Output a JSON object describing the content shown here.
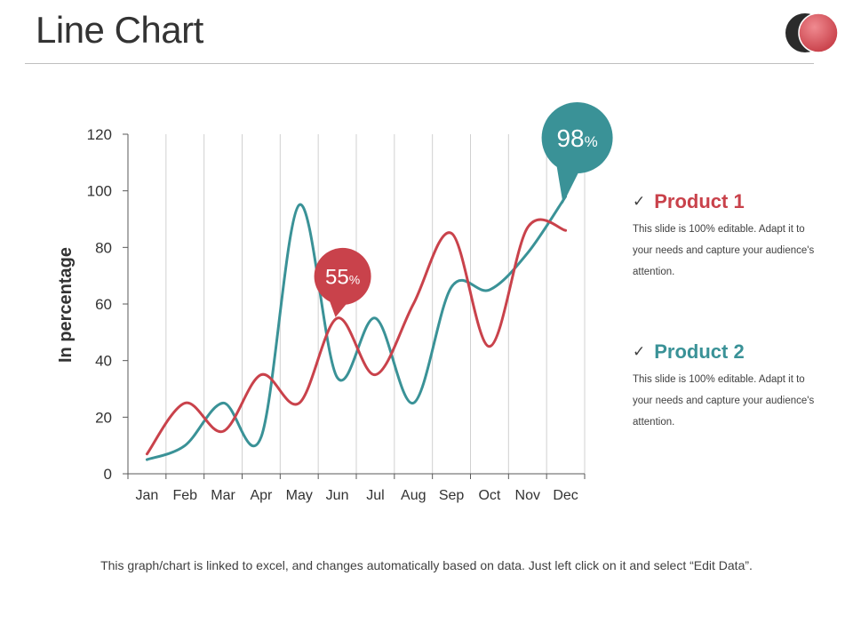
{
  "page": {
    "title": "Line Chart"
  },
  "colors": {
    "product1": "#c9424b",
    "product2": "#3a9297",
    "grid": "#d0d0d0",
    "axis": "#595959"
  },
  "chart_data": {
    "type": "line",
    "title": "",
    "xlabel": "",
    "ylabel": "In percentage",
    "ylim": [
      0,
      120
    ],
    "yticks": [
      0,
      20,
      40,
      60,
      80,
      100,
      120
    ],
    "categories": [
      "Jan",
      "Feb",
      "Mar",
      "Apr",
      "May",
      "Jun",
      "Jul",
      "Aug",
      "Sep",
      "Oct",
      "Nov",
      "Dec"
    ],
    "series": [
      {
        "name": "Product 1",
        "values": [
          7,
          25,
          15,
          35,
          25,
          55,
          35,
          60,
          85,
          45,
          87,
          86
        ]
      },
      {
        "name": "Product 2",
        "values": [
          5,
          10,
          25,
          13,
          95,
          34,
          55,
          25,
          66,
          65,
          78,
          98
        ]
      }
    ],
    "grid": "vertical",
    "callouts": [
      {
        "series": "Product 1",
        "category": "Jun",
        "value": "55",
        "unit": "%"
      },
      {
        "series": "Product 2",
        "category": "Dec",
        "value": "98",
        "unit": "%"
      }
    ],
    "legend_position": "right"
  },
  "legend": [
    {
      "name": "Product 1",
      "description": "This slide is 100% editable. Adapt it to your needs and capture your audience's attention."
    },
    {
      "name": "Product 2",
      "description": "This slide is 100% editable. Adapt it to your needs and capture your audience's attention."
    }
  ],
  "legend_check": "✓",
  "footnote": "This graph/chart is linked to excel, and changes automatically  based on data. Just left click on it and select “Edit Data”."
}
